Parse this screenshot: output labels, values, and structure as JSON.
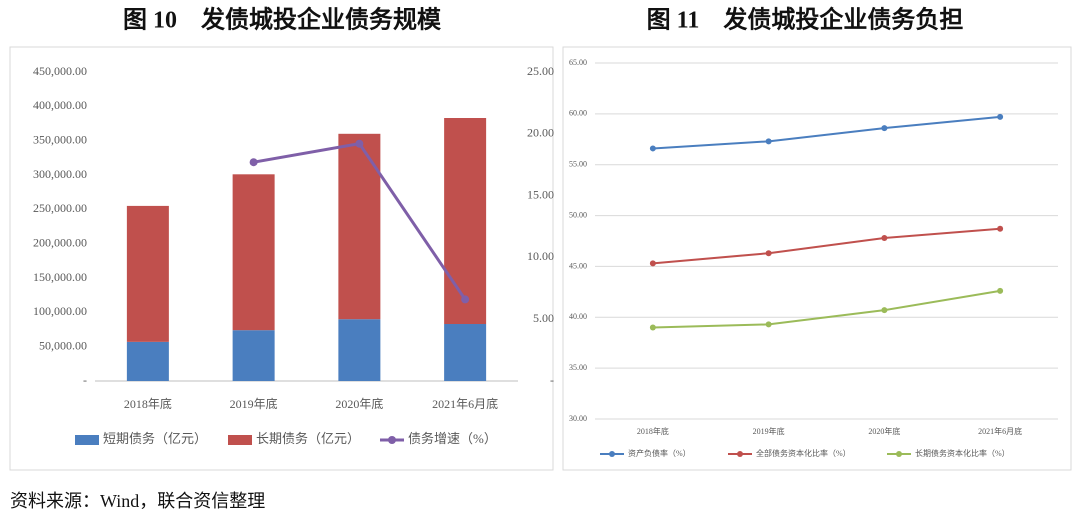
{
  "chart_data": [
    {
      "type": "bar",
      "title": "图 10　发债城投企业债务规模",
      "stacked": true,
      "grid": false,
      "categories": [
        "2018年底",
        "2019年底",
        "2020年底",
        "2021年6月底"
      ],
      "series": [
        {
          "name": "短期债务（亿元）",
          "color": "#4a7ebf",
          "values": [
            57000,
            74000,
            90000,
            83000
          ]
        },
        {
          "name": "长期债务（亿元）",
          "color": "#c0504d",
          "values": [
            198000,
            227000,
            270000,
            300000
          ]
        },
        {
          "name": "债务增速（%）",
          "color": "#7f5fa8",
          "type": "line",
          "axis": "y2",
          "values": [
            null,
            17.7,
            19.2,
            6.6
          ]
        }
      ],
      "ylim": [
        0,
        450000
      ],
      "yticks": [
        {
          "value": 0,
          "label": "-"
        },
        {
          "value": 50000,
          "label": "50,000.00"
        },
        {
          "value": 100000,
          "label": "100,000.00"
        },
        {
          "value": 150000,
          "label": "150,000.00"
        },
        {
          "value": 200000,
          "label": "200,000.00"
        },
        {
          "value": 250000,
          "label": "250,000.00"
        },
        {
          "value": 300000,
          "label": "300,000.00"
        },
        {
          "value": 350000,
          "label": "350,000.00"
        },
        {
          "value": 400000,
          "label": "400,000.00"
        },
        {
          "value": 450000,
          "label": "450,000.00"
        }
      ],
      "y2lim": [
        0,
        25
      ],
      "y2ticks": [
        {
          "value": 0,
          "label": "-"
        },
        {
          "value": 5,
          "label": "5.00"
        },
        {
          "value": 10,
          "label": "10.00"
        },
        {
          "value": 15,
          "label": "15.00"
        },
        {
          "value": 20,
          "label": "20.00"
        },
        {
          "value": 25,
          "label": "25.00"
        }
      ]
    },
    {
      "type": "line",
      "title": "图 11　发债城投企业债务负担",
      "grid": true,
      "categories": [
        "2018年底",
        "2019年底",
        "2020年底",
        "2021年6月底"
      ],
      "series": [
        {
          "name": "资产负债率（%）",
          "color": "#4a7ebf",
          "values": [
            56.6,
            57.3,
            58.6,
            59.7
          ]
        },
        {
          "name": "全部债务资本化比率（%）",
          "color": "#c0504d",
          "values": [
            45.3,
            46.3,
            47.8,
            48.7
          ]
        },
        {
          "name": "长期债务资本化比率（%）",
          "color": "#9bbb59",
          "values": [
            39.0,
            39.3,
            40.7,
            42.6
          ]
        }
      ],
      "ylim": [
        30,
        65
      ],
      "yticks": [
        {
          "value": 30,
          "label": "30.00"
        },
        {
          "value": 35,
          "label": "35.00"
        },
        {
          "value": 40,
          "label": "40.00"
        },
        {
          "value": 45,
          "label": "45.00"
        },
        {
          "value": 50,
          "label": "50.00"
        },
        {
          "value": 55,
          "label": "55.00"
        },
        {
          "value": 60,
          "label": "60.00"
        },
        {
          "value": 65,
          "label": "65.00"
        }
      ]
    }
  ],
  "source": "资料来源：Wind，联合资信整理"
}
